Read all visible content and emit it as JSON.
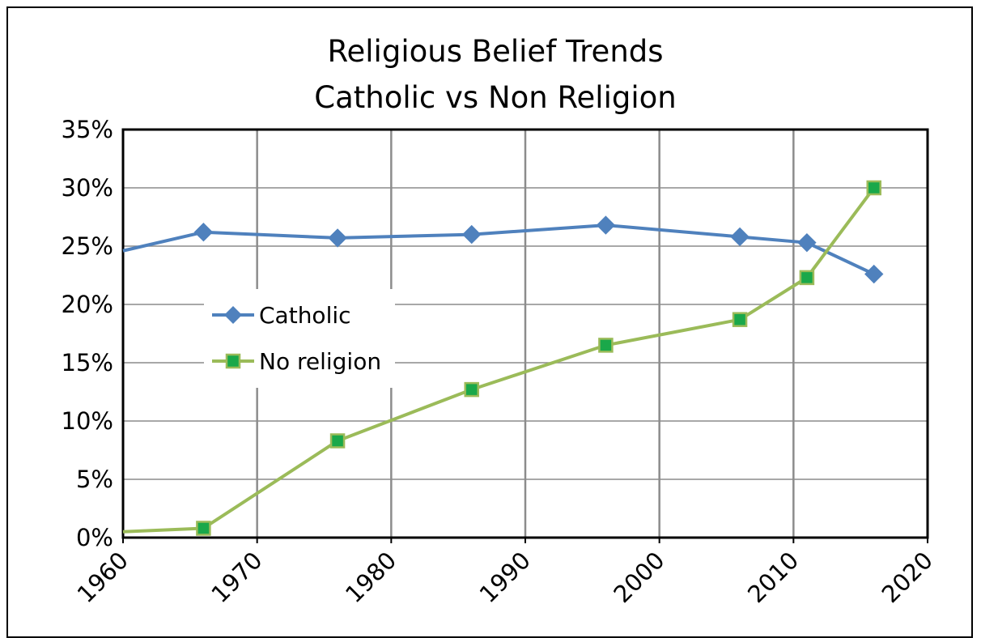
{
  "chart_data": {
    "type": "line",
    "title": "Religious Belief Trends",
    "subtitle": "Catholic vs Non Religion",
    "xlim": [
      1960,
      2020
    ],
    "ylim": [
      0,
      35
    ],
    "x_ticks": [
      "1960",
      "1970",
      "1980",
      "1990",
      "2000",
      "2010",
      "2020"
    ],
    "y_ticks": [
      "0%",
      "5%",
      "10%",
      "15%",
      "20%",
      "25%",
      "30%",
      "35%"
    ],
    "grid": true,
    "legend_position": "left-center",
    "series": [
      {
        "name": "Catholic",
        "color": "#4f81bd",
        "marker": "diamond",
        "x": [
          1960,
          1966,
          1976,
          1986,
          1996,
          2006,
          2011,
          2016
        ],
        "y": [
          24.6,
          26.2,
          25.7,
          26.0,
          26.8,
          25.8,
          25.3,
          22.6
        ]
      },
      {
        "name": "No religion",
        "color": "#9bbb59",
        "marker_fill": "#1aa84a",
        "marker": "square",
        "x": [
          1960,
          1966,
          1976,
          1986,
          1996,
          2006,
          2011,
          2016
        ],
        "y": [
          0.5,
          0.8,
          8.3,
          12.7,
          16.5,
          18.7,
          22.3,
          30.0
        ]
      }
    ]
  }
}
